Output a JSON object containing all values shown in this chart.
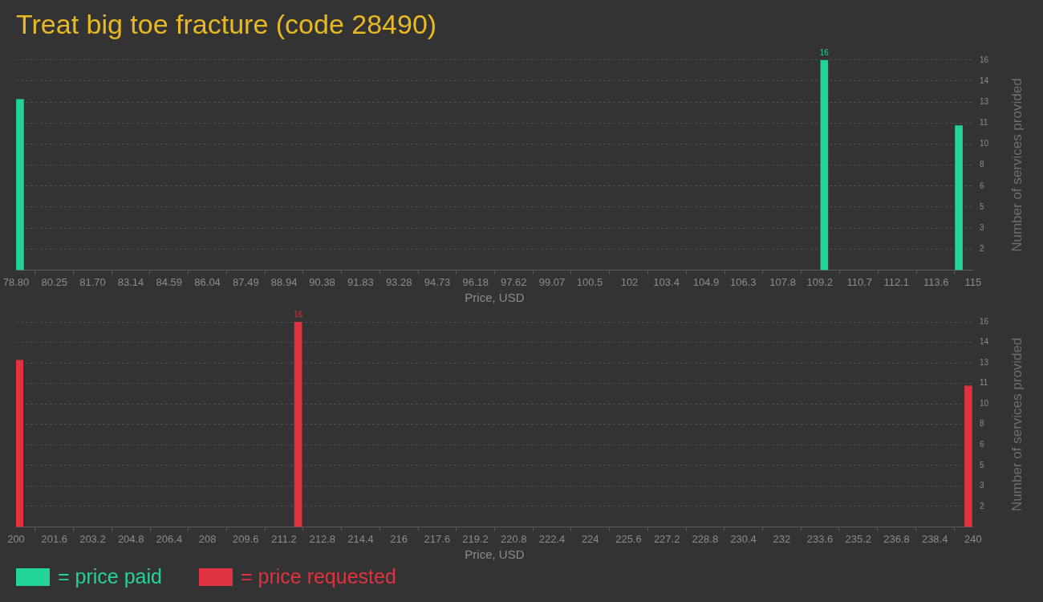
{
  "chart_data": [
    {
      "type": "bar",
      "title": "Treat big toe fracture (code 28490)",
      "xlabel": "Price, USD",
      "ylabel": "Number of services provided",
      "series": [
        {
          "name": "= price paid",
          "color": "#22d49a",
          "x": [
            78.95,
            109.37,
            114.46
          ],
          "values": [
            13,
            16,
            11
          ],
          "value_labels": [
            null,
            "16",
            null
          ]
        }
      ],
      "xlim": [
        78.8,
        115
      ],
      "xticks": [
        {
          "value": 78.8,
          "label": "78.80"
        },
        80.25,
        {
          "value": 81.7,
          "label": "81.70"
        },
        83.14,
        84.59,
        86.04,
        87.49,
        88.94,
        90.38,
        91.83,
        93.28,
        94.73,
        96.18,
        97.62,
        99.07,
        100.5,
        102,
        103.4,
        104.9,
        106.3,
        107.8,
        109.2,
        110.7,
        112.1,
        113.6,
        115
      ],
      "ylim": [
        0,
        16
      ],
      "yticks": [
        {
          "value": 1.6,
          "label": "2"
        },
        {
          "value": 3.2,
          "label": "3"
        },
        {
          "value": 4.8,
          "label": "5"
        },
        {
          "value": 6.4,
          "label": "6"
        },
        {
          "value": 8,
          "label": "8"
        },
        {
          "value": 9.6,
          "label": "10"
        },
        {
          "value": 11.2,
          "label": "11"
        },
        {
          "value": 12.8,
          "label": "13"
        },
        {
          "value": 14.4,
          "label": "14"
        },
        {
          "value": 16,
          "label": "16"
        }
      ],
      "grid": "y",
      "legend": "bottom"
    },
    {
      "type": "bar",
      "xlabel": "Price, USD",
      "ylabel": "Number of services provided",
      "series": [
        {
          "name": "= price requested",
          "color": "#e0333f",
          "x": [
            200.14,
            211.79,
            239.8
          ],
          "values": [
            13,
            16,
            11
          ],
          "value_labels": [
            null,
            "16",
            null
          ]
        }
      ],
      "xlim": [
        200,
        240
      ],
      "xticks": [
        200,
        201.6,
        203.2,
        204.8,
        206.4,
        208,
        209.6,
        211.2,
        212.8,
        214.4,
        216,
        217.6,
        219.2,
        220.8,
        222.4,
        224,
        225.6,
        227.2,
        228.8,
        230.4,
        232,
        233.6,
        235.2,
        236.8,
        238.4,
        240
      ],
      "ylim": [
        0,
        16
      ],
      "yticks": [
        {
          "value": 1.6,
          "label": "2"
        },
        {
          "value": 3.2,
          "label": "3"
        },
        {
          "value": 4.8,
          "label": "5"
        },
        {
          "value": 6.4,
          "label": "6"
        },
        {
          "value": 8,
          "label": "8"
        },
        {
          "value": 9.6,
          "label": "10"
        },
        {
          "value": 11.2,
          "label": "11"
        },
        {
          "value": 12.8,
          "label": "13"
        },
        {
          "value": 14.4,
          "label": "14"
        },
        {
          "value": 16,
          "label": "16"
        }
      ],
      "grid": "y",
      "legend": "bottom"
    }
  ]
}
